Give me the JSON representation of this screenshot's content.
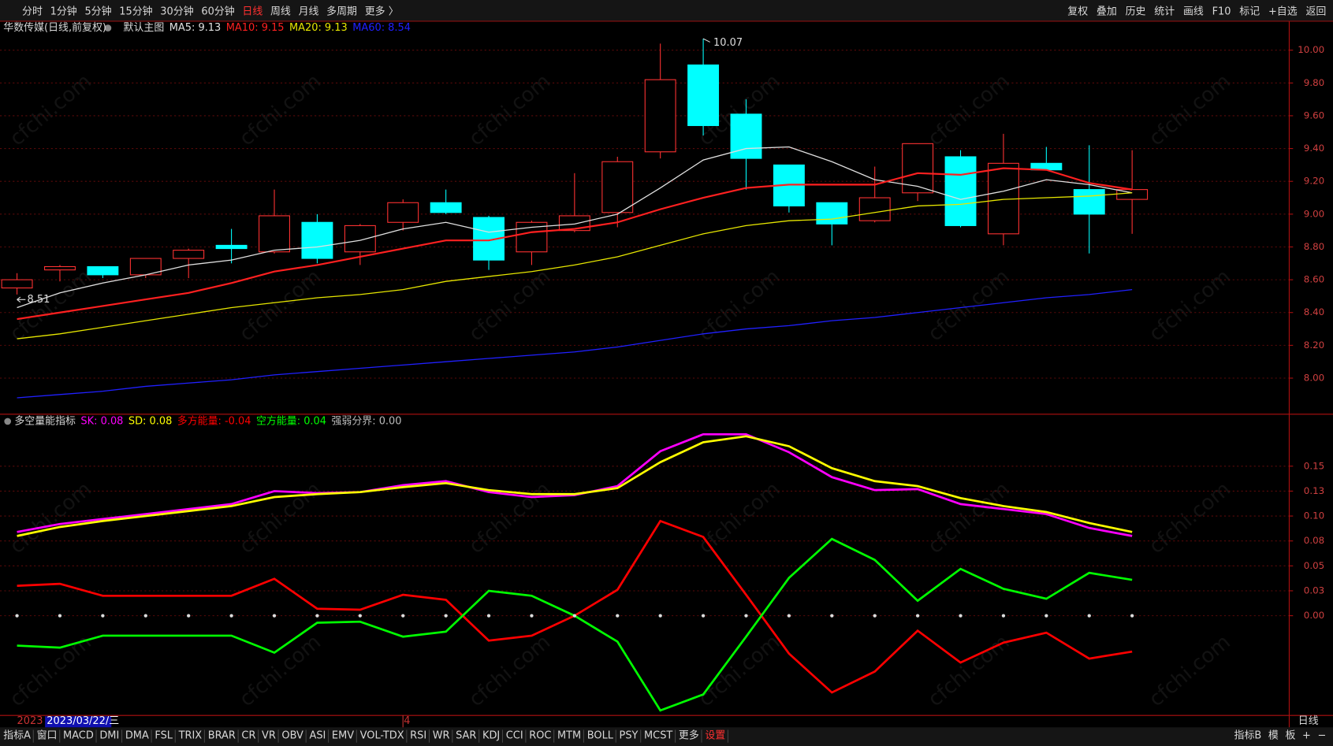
{
  "toolbar": {
    "periods": [
      "分时",
      "1分钟",
      "5分钟",
      "15分钟",
      "30分钟",
      "60分钟",
      "日线",
      "周线",
      "月线",
      "多周期",
      "更多 〉"
    ],
    "active_index": 6,
    "tools": [
      "复权",
      "叠加",
      "历史",
      "统计",
      "画线",
      "F10",
      "标记",
      "+自选",
      "返回"
    ]
  },
  "tabs": {
    "left": [
      "指标A",
      "窗口",
      "MACD",
      "DMI",
      "DMA",
      "FSL",
      "TRIX",
      "BRAR",
      "CR",
      "VR",
      "OBV",
      "ASI",
      "EMV",
      "VOL-TDX",
      "RSI",
      "WR",
      "SAR",
      "KDJ",
      "CCI",
      "ROC",
      "MTM",
      "BOLL",
      "PSY",
      "MCST",
      "更多",
      "设置"
    ],
    "highlight_index": 25,
    "right": [
      "指标B",
      "模",
      "板",
      "+",
      "−"
    ]
  },
  "watermark": "cfchi.com",
  "x_labels": [
    "2023",
    "4"
  ],
  "cursor_label": "2023/03/22/三",
  "period_label": "日线",
  "chart_data": [
    {
      "type": "candlestick",
      "title": "华数传媒(日线,前复权)",
      "subtitle": "默认主图",
      "legend": [
        "MA5: 9.13",
        "MA10: 9.15",
        "MA20: 9.13",
        "MA60: 8.54"
      ],
      "open": [
        8.55,
        8.66,
        8.68,
        8.63,
        8.73,
        8.81,
        8.77,
        8.95,
        8.77,
        8.95,
        9.07,
        8.98,
        8.77,
        8.9,
        9.01,
        9.38,
        9.91,
        9.61,
        9.3,
        9.07,
        8.96,
        9.13,
        9.35,
        8.88,
        9.31,
        9.15,
        9.09
      ],
      "high": [
        8.64,
        8.69,
        8.68,
        8.73,
        8.79,
        8.91,
        9.15,
        9.0,
        8.94,
        9.09,
        9.15,
        8.99,
        8.96,
        9.25,
        9.35,
        10.04,
        10.07,
        9.7,
        9.3,
        9.07,
        9.29,
        9.43,
        9.39,
        9.49,
        9.41,
        9.42,
        9.39
      ],
      "low": [
        8.51,
        8.59,
        8.61,
        8.61,
        8.61,
        8.7,
        8.76,
        8.7,
        8.69,
        8.9,
        9.0,
        8.66,
        8.69,
        8.89,
        8.92,
        9.34,
        9.48,
        9.15,
        9.01,
        8.81,
        8.95,
        9.08,
        8.92,
        8.81,
        9.27,
        8.76,
        8.88
      ],
      "close": [
        8.6,
        8.68,
        8.63,
        8.73,
        8.78,
        8.79,
        8.99,
        8.73,
        8.93,
        9.07,
        9.01,
        8.72,
        8.95,
        8.99,
        9.32,
        9.82,
        9.54,
        9.34,
        9.05,
        8.94,
        9.1,
        9.43,
        8.93,
        9.31,
        9.27,
        9.0,
        9.15
      ],
      "up_color": "#ff3232",
      "down_color": "#00ffff",
      "series": [
        {
          "color": "#e0e0e0",
          "values": [
            8.43,
            8.52,
            8.58,
            8.63,
            8.69,
            8.72,
            8.78,
            8.8,
            8.84,
            8.91,
            8.95,
            8.89,
            8.92,
            8.94,
            9.0,
            9.16,
            9.33,
            9.4,
            9.41,
            9.32,
            9.21,
            9.17,
            9.09,
            9.14,
            9.21,
            9.18,
            9.13
          ]
        },
        {
          "color": "#ff2020",
          "values": [
            8.36,
            8.4,
            8.44,
            8.48,
            8.52,
            8.58,
            8.65,
            8.69,
            8.74,
            8.79,
            8.84,
            8.84,
            8.89,
            8.91,
            8.95,
            9.03,
            9.1,
            9.16,
            9.18,
            9.18,
            9.18,
            9.25,
            9.24,
            9.28,
            9.27,
            9.19,
            9.15
          ]
        },
        {
          "color": "#e6e600",
          "values": [
            8.24,
            8.27,
            8.31,
            8.35,
            8.39,
            8.43,
            8.46,
            8.49,
            8.51,
            8.54,
            8.59,
            8.62,
            8.65,
            8.69,
            8.74,
            8.81,
            8.88,
            8.93,
            8.96,
            8.97,
            9.01,
            9.05,
            9.06,
            9.09,
            9.1,
            9.11,
            9.13
          ]
        },
        {
          "color": "#2020ff",
          "values": [
            7.88,
            7.9,
            7.92,
            7.95,
            7.97,
            7.99,
            8.02,
            8.04,
            8.06,
            8.08,
            8.1,
            8.12,
            8.14,
            8.16,
            8.19,
            8.23,
            8.27,
            8.3,
            8.32,
            8.35,
            8.37,
            8.4,
            8.43,
            8.46,
            8.49,
            8.51,
            8.54
          ]
        }
      ],
      "high_label": "10.07",
      "low_label": "8.51",
      "ylim": [
        7.78,
        10.18
      ],
      "yticks": [
        {
          "value": 8,
          "label": "8.00"
        },
        {
          "value": 8.2,
          "label": "8.20"
        },
        {
          "value": 8.4,
          "label": "8.40"
        },
        {
          "value": 8.6,
          "label": "8.60"
        },
        {
          "value": 8.8,
          "label": "8.80"
        },
        {
          "value": 9,
          "label": "9.00"
        },
        {
          "value": 9.2,
          "label": "9.20"
        },
        {
          "value": 9.4,
          "label": "9.40"
        },
        {
          "value": 9.6,
          "label": "9.60"
        },
        {
          "value": 9.8,
          "label": "9.80"
        },
        {
          "value": 10,
          "label": "10.00"
        }
      ],
      "grid": true
    },
    {
      "type": "line",
      "title": "多空量能指标",
      "legend": [
        "SK: 0.08",
        "SD: 0.08",
        "多方能量: -0.04",
        "空方能量: 0.04",
        "强弱分界: 0.00"
      ],
      "series": [
        {
          "color": "#ff00ff",
          "values": [
            0.084,
            0.092,
            0.097,
            0.102,
            0.107,
            0.112,
            0.125,
            0.123,
            0.124,
            0.131,
            0.135,
            0.124,
            0.119,
            0.121,
            0.13,
            0.165,
            0.182,
            0.182,
            0.164,
            0.139,
            0.126,
            0.127,
            0.112,
            0.107,
            0.102,
            0.088,
            0.08
          ]
        },
        {
          "color": "#ffff00",
          "values": [
            0.08,
            0.089,
            0.095,
            0.1,
            0.105,
            0.11,
            0.119,
            0.122,
            0.124,
            0.129,
            0.133,
            0.126,
            0.122,
            0.122,
            0.128,
            0.154,
            0.174,
            0.18,
            0.17,
            0.148,
            0.135,
            0.13,
            0.118,
            0.11,
            0.104,
            0.093,
            0.084
          ]
        },
        {
          "color": "#ff0000",
          "values": [
            0.03,
            0.032,
            0.02,
            0.02,
            0.02,
            0.02,
            0.037,
            0.007,
            0.006,
            0.021,
            0.016,
            -0.025,
            -0.02,
            0,
            0.026,
            0.095,
            0.079,
            0.021,
            -0.038,
            -0.077,
            -0.056,
            -0.015,
            -0.047,
            -0.027,
            -0.017,
            -0.043,
            -0.036
          ]
        },
        {
          "color": "#00ff00",
          "values": [
            -0.03,
            -0.032,
            -0.02,
            -0.02,
            -0.02,
            -0.02,
            -0.037,
            -0.007,
            -0.006,
            -0.021,
            -0.016,
            0.025,
            0.02,
            0,
            -0.026,
            -0.095,
            -0.079,
            -0.021,
            0.038,
            0.077,
            0.056,
            0.015,
            0.047,
            0.027,
            0.017,
            0.043,
            0.036
          ]
        },
        {
          "color": "#dddddd",
          "style": "dots",
          "values": [
            0,
            0,
            0,
            0,
            0,
            0,
            0,
            0,
            0,
            0,
            0,
            0,
            0,
            0,
            0,
            0,
            0,
            0,
            0,
            0,
            0,
            0,
            0,
            0,
            0,
            0,
            0
          ]
        }
      ],
      "ylim": [
        -0.1,
        0.2
      ],
      "yticks": [
        {
          "value": 0,
          "label": "0.00"
        },
        {
          "value": 0.025,
          "label": "0.03"
        },
        {
          "value": 0.05,
          "label": "0.05"
        },
        {
          "value": 0.075,
          "label": "0.08"
        },
        {
          "value": 0.1,
          "label": "0.10"
        },
        {
          "value": 0.125,
          "label": "0.13"
        },
        {
          "value": 0.15,
          "label": "0.15"
        }
      ],
      "grid": true
    }
  ]
}
